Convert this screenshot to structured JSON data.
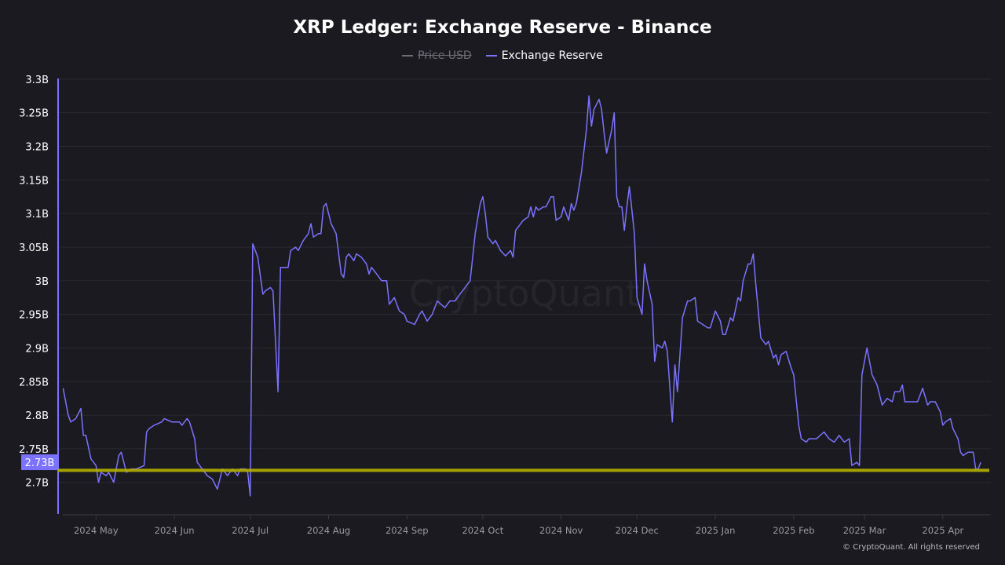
{
  "colors": {
    "background": "#1b1a21",
    "series": "#7b73ff",
    "reference": "#b5b000",
    "grid": "#2a2930",
    "axis_text": "#ffffff",
    "xtick_text": "#9a99a0",
    "price_legend": "#6f6e76"
  },
  "watermark": "CryptoQuant",
  "footer": "© CryptoQuant. All rights reserved",
  "chart_data": {
    "type": "line",
    "title": "XRP Ledger: Exchange Reserve - Binance",
    "legend": [
      {
        "name": "Price USD",
        "hidden": true,
        "color": "#6f6e76"
      },
      {
        "name": "Exchange Reserve",
        "hidden": false,
        "color": "#7b73ff"
      }
    ],
    "legend_placement": "top-center",
    "grid": true,
    "ylim": [
      2.653,
      3.308
    ],
    "xlim": [
      "2024-04-16",
      "2025-04-20"
    ],
    "yticks": [
      {
        "v": 2.7,
        "label": "2.7B"
      },
      {
        "v": 2.75,
        "label": "2.75B"
      },
      {
        "v": 2.8,
        "label": "2.8B"
      },
      {
        "v": 2.85,
        "label": "2.85B"
      },
      {
        "v": 2.9,
        "label": "2.9B"
      },
      {
        "v": 2.95,
        "label": "2.95B"
      },
      {
        "v": 3.0,
        "label": "3B"
      },
      {
        "v": 3.05,
        "label": "3.05B"
      },
      {
        "v": 3.1,
        "label": "3.1B"
      },
      {
        "v": 3.15,
        "label": "3.15B"
      },
      {
        "v": 3.2,
        "label": "3.2B"
      },
      {
        "v": 3.25,
        "label": "3.25B"
      },
      {
        "v": 3.3,
        "label": "3.3B"
      }
    ],
    "xticks": [
      {
        "d": "2024-05-01",
        "label": "2024 May"
      },
      {
        "d": "2024-06-01",
        "label": "2024 Jun"
      },
      {
        "d": "2024-07-01",
        "label": "2024 Jul"
      },
      {
        "d": "2024-08-01",
        "label": "2024 Aug"
      },
      {
        "d": "2024-09-01",
        "label": "2024 Sep"
      },
      {
        "d": "2024-10-01",
        "label": "2024 Oct"
      },
      {
        "d": "2024-11-01",
        "label": "2024 Nov"
      },
      {
        "d": "2024-12-01",
        "label": "2024 Dec"
      },
      {
        "d": "2025-01-01",
        "label": "2025 Jan"
      },
      {
        "d": "2025-02-01",
        "label": "2025 Feb"
      },
      {
        "d": "2025-03-01",
        "label": "2025 Mar"
      },
      {
        "d": "2025-04-01",
        "label": "2025 Apr"
      }
    ],
    "reference_line": 2.718,
    "current_value_label": "2.73B",
    "current_value": 2.73,
    "series": [
      {
        "name": "Exchange Reserve",
        "unit": "B",
        "points": [
          [
            "2024-04-18",
            2.84
          ],
          [
            "2024-04-20",
            2.8
          ],
          [
            "2024-04-21",
            2.79
          ],
          [
            "2024-04-23",
            2.795
          ],
          [
            "2024-04-25",
            2.81
          ],
          [
            "2024-04-26",
            2.77
          ],
          [
            "2024-04-27",
            2.77
          ],
          [
            "2024-04-29",
            2.735
          ],
          [
            "2024-05-01",
            2.725
          ],
          [
            "2024-05-02",
            2.7
          ],
          [
            "2024-05-03",
            2.715
          ],
          [
            "2024-05-05",
            2.71
          ],
          [
            "2024-05-06",
            2.715
          ],
          [
            "2024-05-08",
            2.7
          ],
          [
            "2024-05-10",
            2.74
          ],
          [
            "2024-05-11",
            2.745
          ],
          [
            "2024-05-13",
            2.715
          ],
          [
            "2024-05-15",
            2.72
          ],
          [
            "2024-05-17",
            2.72
          ],
          [
            "2024-05-20",
            2.725
          ],
          [
            "2024-05-21",
            2.775
          ],
          [
            "2024-05-22",
            2.78
          ],
          [
            "2024-05-24",
            2.785
          ],
          [
            "2024-05-27",
            2.79
          ],
          [
            "2024-05-28",
            2.795
          ],
          [
            "2024-05-31",
            2.79
          ],
          [
            "2024-06-03",
            2.79
          ],
          [
            "2024-06-04",
            2.785
          ],
          [
            "2024-06-06",
            2.795
          ],
          [
            "2024-06-07",
            2.79
          ],
          [
            "2024-06-09",
            2.765
          ],
          [
            "2024-06-10",
            2.73
          ],
          [
            "2024-06-12",
            2.72
          ],
          [
            "2024-06-14",
            2.71
          ],
          [
            "2024-06-16",
            2.705
          ],
          [
            "2024-06-18",
            2.69
          ],
          [
            "2024-06-20",
            2.72
          ],
          [
            "2024-06-22",
            2.71
          ],
          [
            "2024-06-24",
            2.72
          ],
          [
            "2024-06-26",
            2.71
          ],
          [
            "2024-06-27",
            2.72
          ],
          [
            "2024-06-29",
            2.72
          ],
          [
            "2024-06-30",
            2.715
          ],
          [
            "2024-07-01",
            2.68
          ],
          [
            "2024-07-02",
            3.055
          ],
          [
            "2024-07-04",
            3.035
          ],
          [
            "2024-07-06",
            2.98
          ],
          [
            "2024-07-07",
            2.985
          ],
          [
            "2024-07-09",
            2.99
          ],
          [
            "2024-07-10",
            2.985
          ],
          [
            "2024-07-12",
            2.835
          ],
          [
            "2024-07-13",
            3.02
          ],
          [
            "2024-07-14",
            3.02
          ],
          [
            "2024-07-16",
            3.02
          ],
          [
            "2024-07-17",
            3.045
          ],
          [
            "2024-07-19",
            3.05
          ],
          [
            "2024-07-20",
            3.045
          ],
          [
            "2024-07-22",
            3.06
          ],
          [
            "2024-07-24",
            3.07
          ],
          [
            "2024-07-25",
            3.085
          ],
          [
            "2024-07-26",
            3.065
          ],
          [
            "2024-07-28",
            3.07
          ],
          [
            "2024-07-29",
            3.07
          ],
          [
            "2024-07-30",
            3.11
          ],
          [
            "2024-07-31",
            3.115
          ],
          [
            "2024-08-01",
            3.1
          ],
          [
            "2024-08-02",
            3.085
          ],
          [
            "2024-08-04",
            3.07
          ],
          [
            "2024-08-06",
            3.01
          ],
          [
            "2024-08-07",
            3.005
          ],
          [
            "2024-08-08",
            3.035
          ],
          [
            "2024-08-09",
            3.04
          ],
          [
            "2024-08-11",
            3.03
          ],
          [
            "2024-08-12",
            3.04
          ],
          [
            "2024-08-14",
            3.035
          ],
          [
            "2024-08-16",
            3.025
          ],
          [
            "2024-08-17",
            3.01
          ],
          [
            "2024-08-18",
            3.02
          ],
          [
            "2024-08-20",
            3.01
          ],
          [
            "2024-08-22",
            3.0
          ],
          [
            "2024-08-24",
            3.0
          ],
          [
            "2024-08-25",
            2.965
          ],
          [
            "2024-08-27",
            2.975
          ],
          [
            "2024-08-29",
            2.955
          ],
          [
            "2024-08-31",
            2.95
          ],
          [
            "2024-09-01",
            2.94
          ],
          [
            "2024-09-04",
            2.935
          ],
          [
            "2024-09-06",
            2.95
          ],
          [
            "2024-09-07",
            2.955
          ],
          [
            "2024-09-09",
            2.94
          ],
          [
            "2024-09-11",
            2.95
          ],
          [
            "2024-09-13",
            2.97
          ],
          [
            "2024-09-16",
            2.96
          ],
          [
            "2024-09-18",
            2.97
          ],
          [
            "2024-09-20",
            2.97
          ],
          [
            "2024-09-23",
            2.985
          ],
          [
            "2024-09-26",
            3.0
          ],
          [
            "2024-09-28",
            3.07
          ],
          [
            "2024-09-30",
            3.115
          ],
          [
            "2024-10-01",
            3.125
          ],
          [
            "2024-10-02",
            3.1
          ],
          [
            "2024-10-03",
            3.065
          ],
          [
            "2024-10-05",
            3.055
          ],
          [
            "2024-10-06",
            3.06
          ],
          [
            "2024-10-08",
            3.045
          ],
          [
            "2024-10-10",
            3.037
          ],
          [
            "2024-10-12",
            3.045
          ],
          [
            "2024-10-13",
            3.035
          ],
          [
            "2024-10-14",
            3.075
          ],
          [
            "2024-10-15",
            3.08
          ],
          [
            "2024-10-17",
            3.09
          ],
          [
            "2024-10-19",
            3.095
          ],
          [
            "2024-10-20",
            3.11
          ],
          [
            "2024-10-21",
            3.095
          ],
          [
            "2024-10-22",
            3.11
          ],
          [
            "2024-10-23",
            3.105
          ],
          [
            "2024-10-25",
            3.11
          ],
          [
            "2024-10-26",
            3.11
          ],
          [
            "2024-10-28",
            3.125
          ],
          [
            "2024-10-29",
            3.125
          ],
          [
            "2024-10-30",
            3.09
          ],
          [
            "2024-11-01",
            3.095
          ],
          [
            "2024-11-02",
            3.11
          ],
          [
            "2024-11-04",
            3.09
          ],
          [
            "2024-11-05",
            3.115
          ],
          [
            "2024-11-06",
            3.105
          ],
          [
            "2024-11-07",
            3.115
          ],
          [
            "2024-11-09",
            3.16
          ],
          [
            "2024-11-11",
            3.225
          ],
          [
            "2024-11-12",
            3.275
          ],
          [
            "2024-11-13",
            3.23
          ],
          [
            "2024-11-14",
            3.255
          ],
          [
            "2024-11-16",
            3.27
          ],
          [
            "2024-11-17",
            3.255
          ],
          [
            "2024-11-18",
            3.22
          ],
          [
            "2024-11-19",
            3.19
          ],
          [
            "2024-11-21",
            3.225
          ],
          [
            "2024-11-22",
            3.25
          ],
          [
            "2024-11-23",
            3.125
          ],
          [
            "2024-11-24",
            3.11
          ],
          [
            "2024-11-25",
            3.11
          ],
          [
            "2024-11-26",
            3.075
          ],
          [
            "2024-11-27",
            3.11
          ],
          [
            "2024-11-28",
            3.14
          ],
          [
            "2024-11-30",
            3.07
          ],
          [
            "2024-12-01",
            2.975
          ],
          [
            "2024-12-03",
            2.95
          ],
          [
            "2024-12-04",
            3.025
          ],
          [
            "2024-12-05",
            3.0
          ],
          [
            "2024-12-07",
            2.965
          ],
          [
            "2024-12-08",
            2.88
          ],
          [
            "2024-12-09",
            2.905
          ],
          [
            "2024-12-11",
            2.9
          ],
          [
            "2024-12-12",
            2.91
          ],
          [
            "2024-12-13",
            2.895
          ],
          [
            "2024-12-15",
            2.79
          ],
          [
            "2024-12-16",
            2.875
          ],
          [
            "2024-12-17",
            2.835
          ],
          [
            "2024-12-19",
            2.945
          ],
          [
            "2024-12-21",
            2.97
          ],
          [
            "2024-12-22",
            2.97
          ],
          [
            "2024-12-24",
            2.975
          ],
          [
            "2024-12-25",
            2.94
          ],
          [
            "2024-12-27",
            2.935
          ],
          [
            "2024-12-29",
            2.93
          ],
          [
            "2024-12-30",
            2.93
          ],
          [
            "2025-01-01",
            2.955
          ],
          [
            "2025-01-03",
            2.94
          ],
          [
            "2025-01-04",
            2.92
          ],
          [
            "2025-01-05",
            2.92
          ],
          [
            "2025-01-07",
            2.945
          ],
          [
            "2025-01-08",
            2.94
          ],
          [
            "2025-01-10",
            2.975
          ],
          [
            "2025-01-11",
            2.97
          ],
          [
            "2025-01-12",
            3.0
          ],
          [
            "2025-01-14",
            3.025
          ],
          [
            "2025-01-15",
            3.025
          ],
          [
            "2025-01-16",
            3.04
          ],
          [
            "2025-01-17",
            2.995
          ],
          [
            "2025-01-19",
            2.915
          ],
          [
            "2025-01-21",
            2.905
          ],
          [
            "2025-01-22",
            2.91
          ],
          [
            "2025-01-24",
            2.885
          ],
          [
            "2025-01-25",
            2.89
          ],
          [
            "2025-01-26",
            2.875
          ],
          [
            "2025-01-27",
            2.89
          ],
          [
            "2025-01-29",
            2.895
          ],
          [
            "2025-01-31",
            2.87
          ],
          [
            "2025-02-01",
            2.86
          ],
          [
            "2025-02-03",
            2.785
          ],
          [
            "2025-02-04",
            2.765
          ],
          [
            "2025-02-06",
            2.76
          ],
          [
            "2025-02-07",
            2.765
          ],
          [
            "2025-02-09",
            2.765
          ],
          [
            "2025-02-10",
            2.765
          ],
          [
            "2025-02-13",
            2.775
          ],
          [
            "2025-02-15",
            2.765
          ],
          [
            "2025-02-17",
            2.76
          ],
          [
            "2025-02-19",
            2.77
          ],
          [
            "2025-02-21",
            2.76
          ],
          [
            "2025-02-23",
            2.765
          ],
          [
            "2025-02-24",
            2.725
          ],
          [
            "2025-02-26",
            2.73
          ],
          [
            "2025-02-27",
            2.725
          ],
          [
            "2025-02-28",
            2.86
          ],
          [
            "2025-03-02",
            2.9
          ],
          [
            "2025-03-03",
            2.88
          ],
          [
            "2025-03-04",
            2.86
          ],
          [
            "2025-03-06",
            2.845
          ],
          [
            "2025-03-07",
            2.83
          ],
          [
            "2025-03-08",
            2.815
          ],
          [
            "2025-03-10",
            2.825
          ],
          [
            "2025-03-12",
            2.82
          ],
          [
            "2025-03-13",
            2.835
          ],
          [
            "2025-03-15",
            2.835
          ],
          [
            "2025-03-16",
            2.845
          ],
          [
            "2025-03-17",
            2.82
          ],
          [
            "2025-03-19",
            2.82
          ],
          [
            "2025-03-20",
            2.82
          ],
          [
            "2025-03-22",
            2.82
          ],
          [
            "2025-03-23",
            2.83
          ],
          [
            "2025-03-24",
            2.84
          ],
          [
            "2025-03-26",
            2.815
          ],
          [
            "2025-03-27",
            2.82
          ],
          [
            "2025-03-29",
            2.82
          ],
          [
            "2025-03-31",
            2.805
          ],
          [
            "2025-04-01",
            2.785
          ],
          [
            "2025-04-02",
            2.79
          ],
          [
            "2025-04-04",
            2.795
          ],
          [
            "2025-04-05",
            2.78
          ],
          [
            "2025-04-07",
            2.765
          ],
          [
            "2025-04-08",
            2.745
          ],
          [
            "2025-04-09",
            2.74
          ],
          [
            "2025-04-11",
            2.745
          ],
          [
            "2025-04-13",
            2.745
          ],
          [
            "2025-04-14",
            2.72
          ],
          [
            "2025-04-15",
            2.72
          ],
          [
            "2025-04-16",
            2.73
          ]
        ]
      }
    ]
  }
}
